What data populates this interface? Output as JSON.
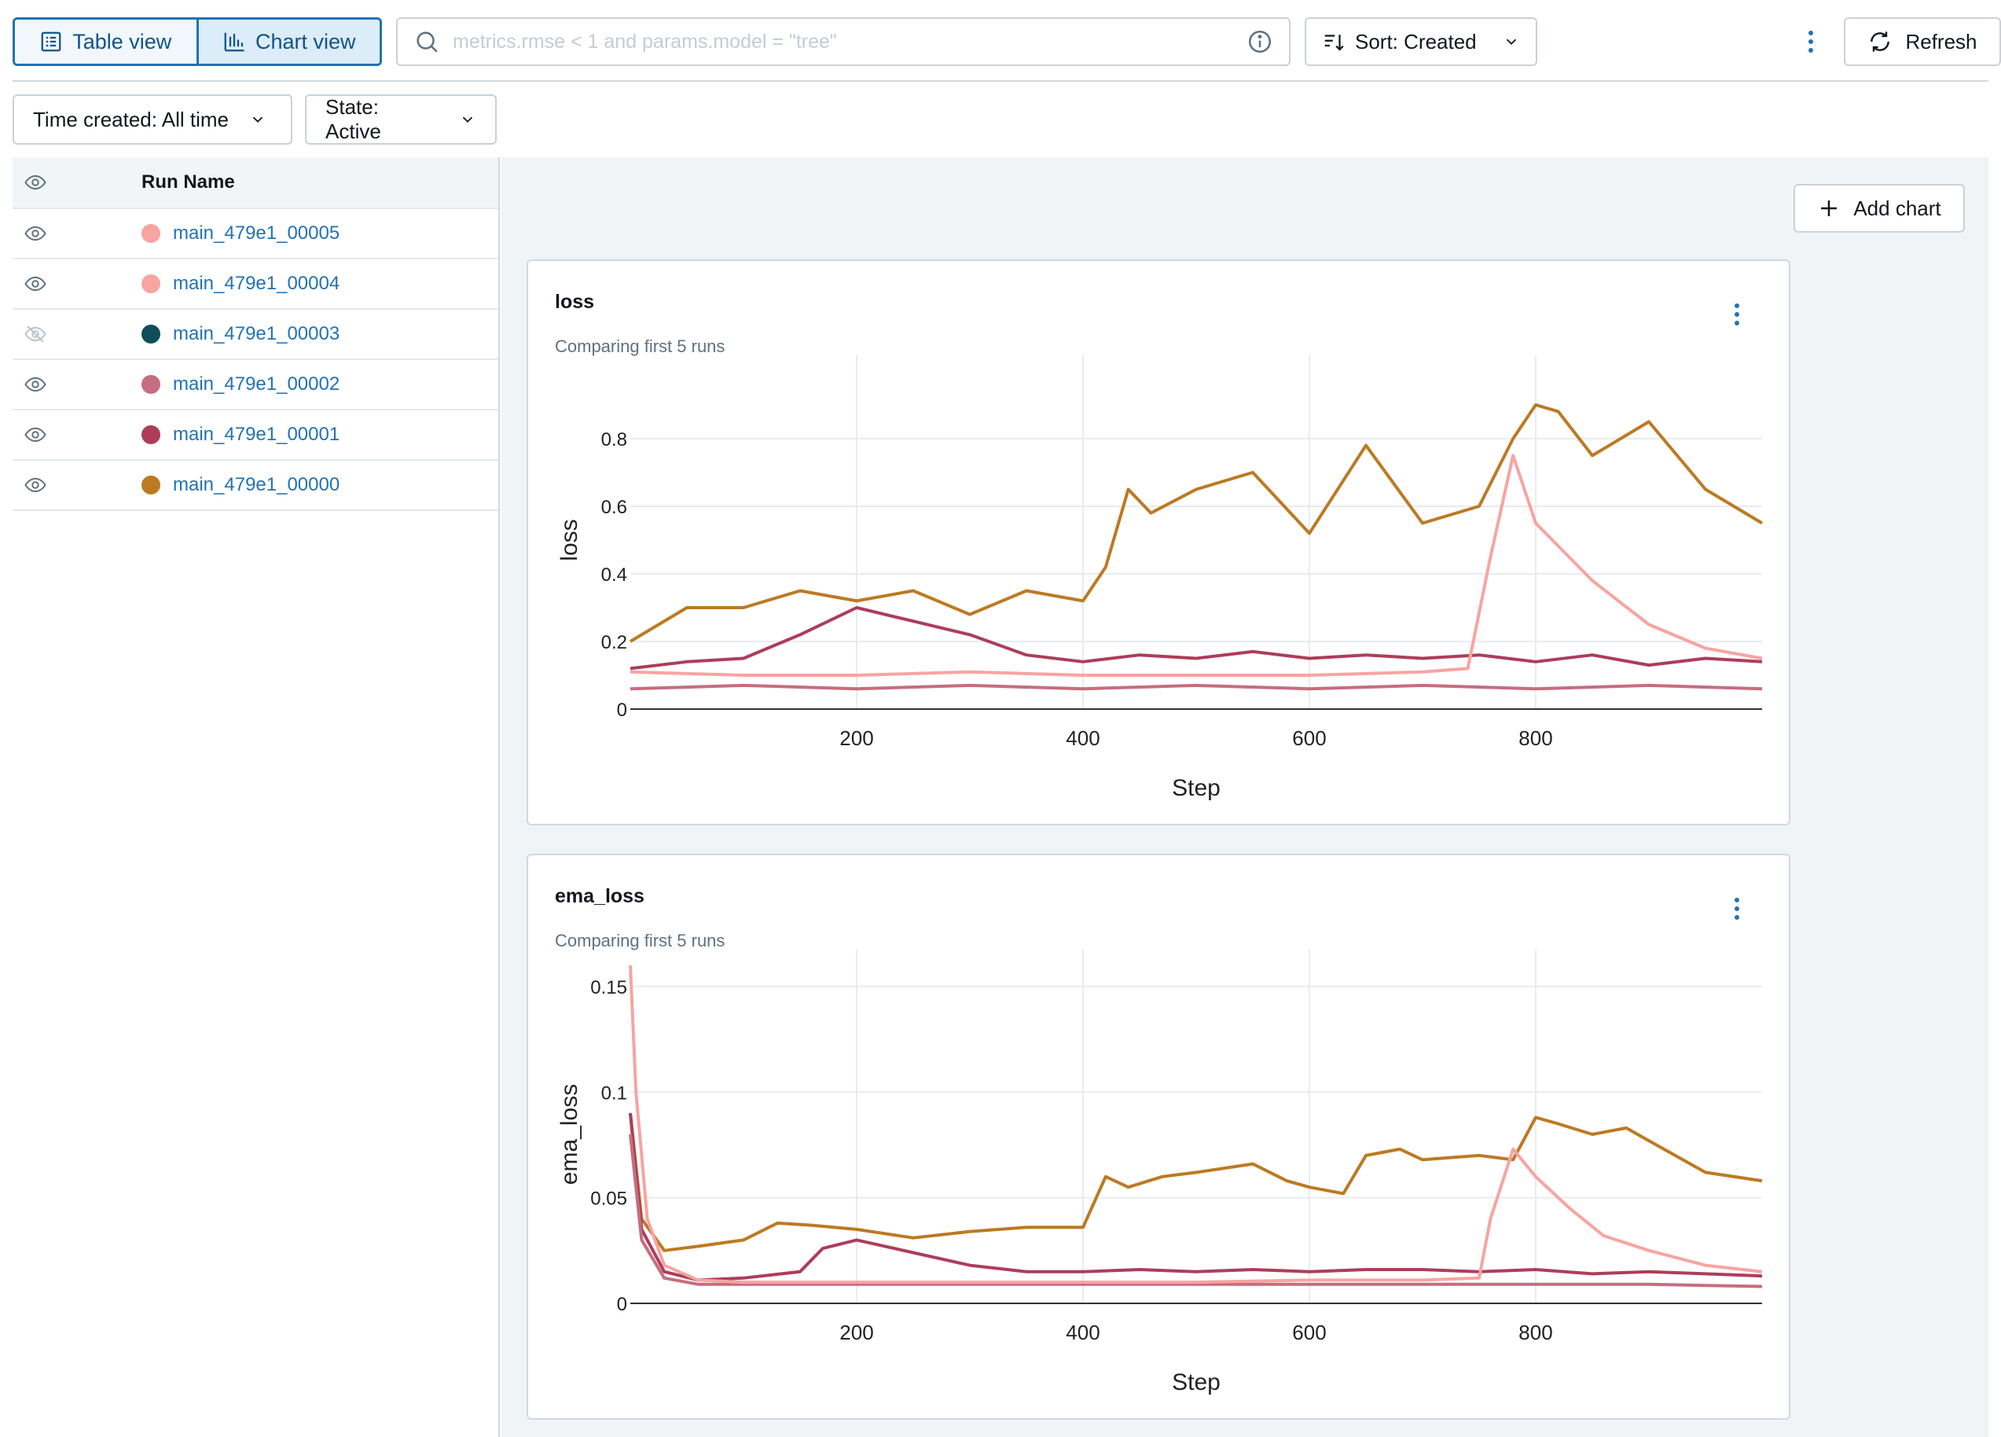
{
  "toolbar": {
    "table_view_label": "Table view",
    "chart_view_label": "Chart view",
    "search_placeholder": "metrics.rmse < 1 and params.model = \"tree\"",
    "sort_label": "Sort: Created",
    "refresh_label": "Refresh"
  },
  "filters": {
    "time_created": "Time created: All time",
    "state": "State: Active"
  },
  "runs": {
    "column_title": "Run Name",
    "items": [
      {
        "name": "main_479e1_00005",
        "color": "#f7a4a2",
        "visible": true
      },
      {
        "name": "main_479e1_00004",
        "color": "#f7a4a2",
        "visible": true
      },
      {
        "name": "main_479e1_00003",
        "color": "#0f4c5c",
        "visible": false
      },
      {
        "name": "main_479e1_00002",
        "color": "#c66d80",
        "visible": true
      },
      {
        "name": "main_479e1_00001",
        "color": "#ad3d5b",
        "visible": true
      },
      {
        "name": "main_479e1_00000",
        "color": "#bc7a22",
        "visible": true
      }
    ]
  },
  "charts_panel": {
    "add_chart_label": "Add chart"
  },
  "colors": {
    "accent": "#2272b4",
    "run_00000": "#bc7a22",
    "run_00001": "#ad3d5b",
    "run_00002": "#c66d80",
    "run_00004": "#f7a4a2",
    "run_00005": "#f7a4a2"
  },
  "chart_data": [
    {
      "type": "line",
      "title": "loss",
      "subtitle": "Comparing first 5 runs",
      "xlabel": "Step",
      "ylabel": "loss",
      "xlim": [
        0,
        1000
      ],
      "ylim": [
        0,
        1.0
      ],
      "x_ticks": [
        200,
        400,
        600,
        800
      ],
      "y_ticks": [
        0,
        0.2,
        0.4,
        0.6,
        0.8
      ],
      "y_tick_labels": [
        "0",
        "0.2",
        "0.4",
        "0.6",
        "0.8"
      ],
      "grid": true,
      "series": [
        {
          "color": "#bc7a22",
          "x": [
            0,
            50,
            100,
            150,
            200,
            250,
            300,
            350,
            400,
            420,
            440,
            460,
            500,
            550,
            600,
            650,
            700,
            750,
            780,
            800,
            820,
            850,
            900,
            950,
            1000
          ],
          "values": [
            0.2,
            0.3,
            0.3,
            0.35,
            0.32,
            0.35,
            0.28,
            0.35,
            0.32,
            0.42,
            0.65,
            0.58,
            0.65,
            0.7,
            0.52,
            0.78,
            0.55,
            0.6,
            0.8,
            0.9,
            0.88,
            0.75,
            0.85,
            0.65,
            0.55
          ]
        },
        {
          "color": "#ad3d5b",
          "x": [
            0,
            50,
            100,
            150,
            200,
            250,
            300,
            350,
            400,
            450,
            500,
            550,
            600,
            650,
            700,
            750,
            800,
            850,
            900,
            950,
            1000
          ],
          "values": [
            0.12,
            0.14,
            0.15,
            0.22,
            0.3,
            0.26,
            0.22,
            0.16,
            0.14,
            0.16,
            0.15,
            0.17,
            0.15,
            0.16,
            0.15,
            0.16,
            0.14,
            0.16,
            0.13,
            0.15,
            0.14
          ]
        },
        {
          "color": "#c66d80",
          "x": [
            0,
            100,
            200,
            300,
            400,
            500,
            600,
            700,
            800,
            900,
            1000
          ],
          "values": [
            0.06,
            0.07,
            0.06,
            0.07,
            0.06,
            0.07,
            0.06,
            0.07,
            0.06,
            0.07,
            0.06
          ]
        },
        {
          "color": "#f7a4a2",
          "x": [
            0,
            100,
            200,
            300,
            400,
            500,
            600,
            700,
            740,
            760,
            780,
            800,
            850,
            900,
            950,
            1000
          ],
          "values": [
            0.11,
            0.1,
            0.1,
            0.11,
            0.1,
            0.1,
            0.1,
            0.11,
            0.12,
            0.45,
            0.75,
            0.55,
            0.38,
            0.25,
            0.18,
            0.15
          ]
        }
      ]
    },
    {
      "type": "line",
      "title": "ema_loss",
      "subtitle": "Comparing first 5 runs",
      "xlabel": "Step",
      "ylabel": "ema_loss",
      "xlim": [
        0,
        1000
      ],
      "ylim": [
        0,
        0.16
      ],
      "x_ticks": [
        200,
        400,
        600,
        800
      ],
      "y_ticks": [
        0,
        0.05,
        0.1,
        0.15
      ],
      "y_tick_labels": [
        "0",
        "0.05",
        "0.1",
        "0.15"
      ],
      "grid": true,
      "series": [
        {
          "color": "#bc7a22",
          "x": [
            0,
            10,
            30,
            60,
            100,
            130,
            160,
            200,
            250,
            300,
            350,
            400,
            420,
            440,
            470,
            500,
            550,
            580,
            600,
            630,
            650,
            680,
            700,
            750,
            780,
            800,
            820,
            850,
            880,
            900,
            950,
            1000
          ],
          "values": [
            0.09,
            0.04,
            0.025,
            0.027,
            0.03,
            0.038,
            0.037,
            0.035,
            0.031,
            0.034,
            0.036,
            0.036,
            0.06,
            0.055,
            0.06,
            0.062,
            0.066,
            0.058,
            0.055,
            0.052,
            0.07,
            0.073,
            0.068,
            0.07,
            0.068,
            0.088,
            0.085,
            0.08,
            0.083,
            0.077,
            0.062,
            0.058
          ]
        },
        {
          "color": "#ad3d5b",
          "x": [
            0,
            10,
            30,
            60,
            100,
            150,
            170,
            200,
            250,
            300,
            350,
            400,
            450,
            500,
            550,
            600,
            650,
            700,
            750,
            800,
            850,
            900,
            950,
            1000
          ],
          "values": [
            0.09,
            0.035,
            0.015,
            0.011,
            0.012,
            0.015,
            0.026,
            0.03,
            0.024,
            0.018,
            0.015,
            0.015,
            0.016,
            0.015,
            0.016,
            0.015,
            0.016,
            0.016,
            0.015,
            0.016,
            0.014,
            0.015,
            0.014,
            0.013
          ]
        },
        {
          "color": "#c66d80",
          "x": [
            0,
            10,
            30,
            60,
            100,
            200,
            300,
            400,
            500,
            600,
            700,
            800,
            900,
            1000
          ],
          "values": [
            0.08,
            0.03,
            0.012,
            0.009,
            0.009,
            0.009,
            0.009,
            0.009,
            0.009,
            0.009,
            0.009,
            0.009,
            0.009,
            0.008
          ]
        },
        {
          "color": "#f7a4a2",
          "x": [
            0,
            5,
            15,
            30,
            60,
            100,
            200,
            300,
            400,
            500,
            600,
            700,
            750,
            760,
            780,
            800,
            830,
            860,
            900,
            950,
            1000
          ],
          "values": [
            0.16,
            0.1,
            0.04,
            0.018,
            0.011,
            0.01,
            0.01,
            0.01,
            0.01,
            0.01,
            0.011,
            0.011,
            0.012,
            0.04,
            0.073,
            0.06,
            0.045,
            0.032,
            0.025,
            0.018,
            0.015
          ]
        }
      ]
    }
  ]
}
